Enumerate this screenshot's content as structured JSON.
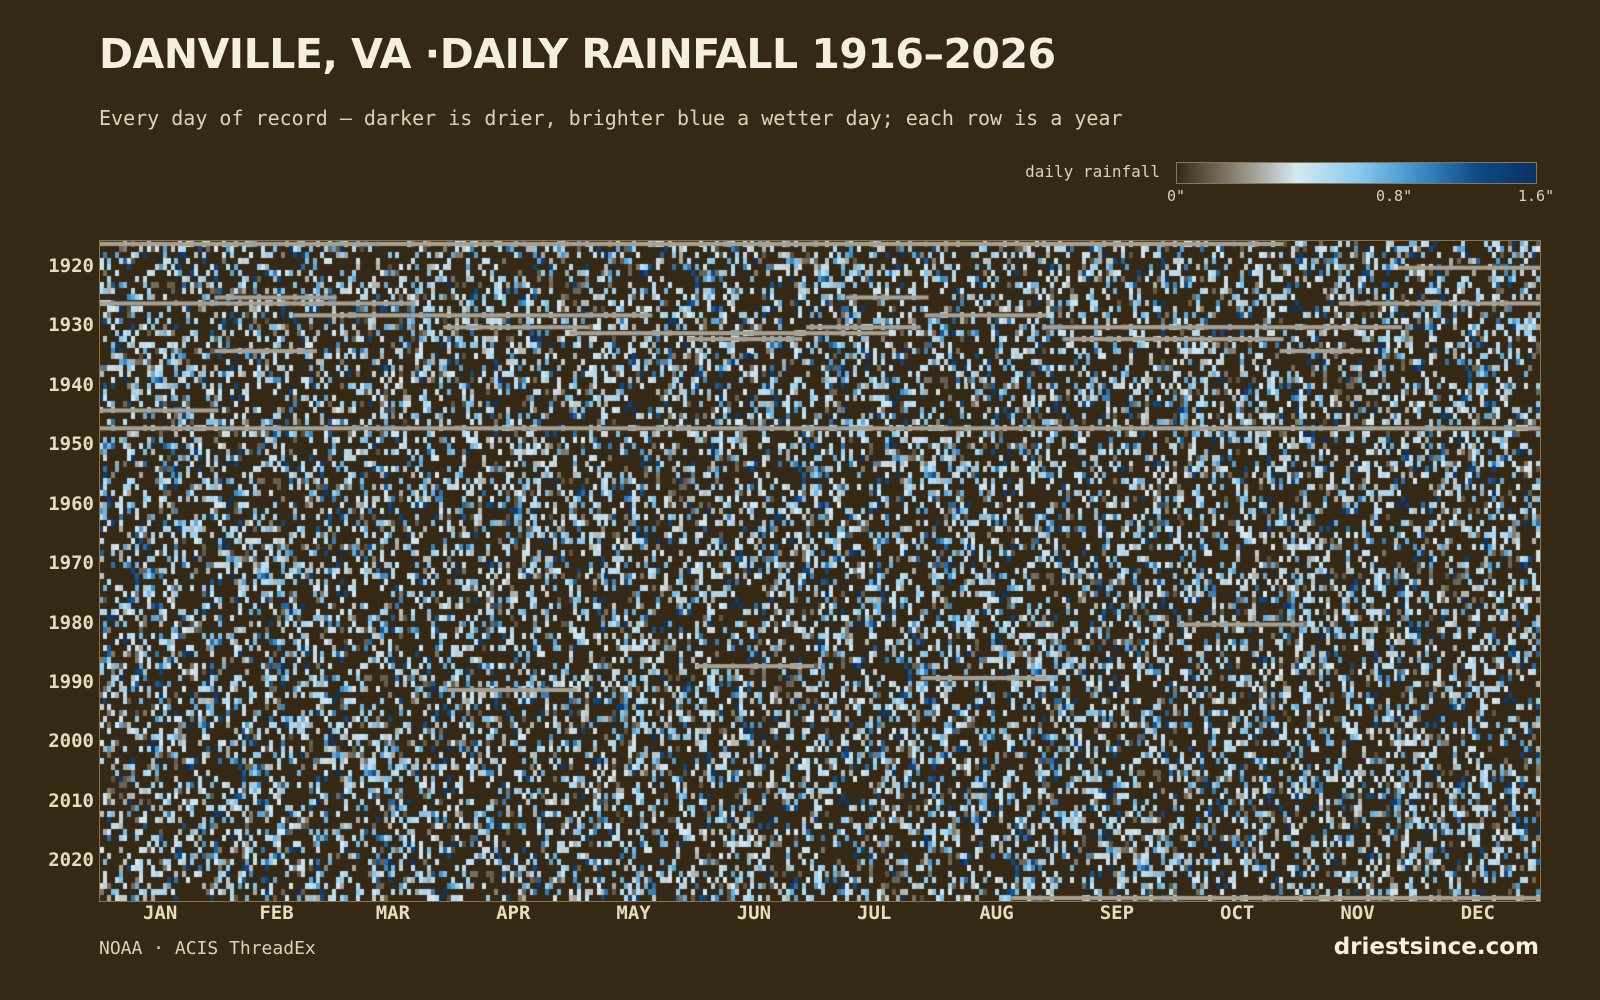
{
  "header": {
    "title": "DANVILLE, VA ·DAILY RAINFALL 1916–2026",
    "subtitle": "Every day of record — darker is drier, brighter blue a wetter day; each row is a year"
  },
  "legend": {
    "label": "daily rainfall",
    "ticks": [
      "0\"",
      "0.8\"",
      "1.6\""
    ],
    "scale_min_in": 0,
    "scale_max_in": 1.6
  },
  "colors": {
    "background": "#352915",
    "missing": "#a79f90",
    "scale": [
      "#352915",
      "#8c8576",
      "#d6e8f2",
      "#8ccbee",
      "#3f8fcb",
      "#0f4a86",
      "#0b3165"
    ]
  },
  "chart_data": {
    "type": "heatmap",
    "title": "DANVILLE, VA ·DAILY RAINFALL 1916–2026",
    "x_axis": "day of year",
    "y_axis": "year",
    "year_range": [
      1916,
      2026
    ],
    "year_tick_labels": [
      "1920",
      "1930",
      "1940",
      "1950",
      "1960",
      "1970",
      "1980",
      "1990",
      "2000",
      "2010",
      "2020"
    ],
    "month_labels": [
      "JAN",
      "FEB",
      "MAR",
      "APR",
      "MAY",
      "JUN",
      "JUL",
      "AUG",
      "SEP",
      "OCT",
      "NOV",
      "DEC"
    ],
    "value_unit": "inches",
    "value_range": [
      0,
      1.6
    ],
    "missing_periods": [
      {
        "year": 1916,
        "from_day": 1,
        "to_day": 90
      },
      {
        "year": 1916,
        "from_day": 90,
        "to_day": 300
      },
      {
        "year": 1920,
        "from_day": 330,
        "to_day": 365
      },
      {
        "year": 1925,
        "from_day": 30,
        "to_day": 60
      },
      {
        "year": 1925,
        "from_day": 190,
        "to_day": 210
      },
      {
        "year": 1926,
        "from_day": 1,
        "to_day": 80
      },
      {
        "year": 1926,
        "from_day": 315,
        "to_day": 365
      },
      {
        "year": 1928,
        "from_day": 50,
        "to_day": 140
      },
      {
        "year": 1928,
        "from_day": 210,
        "to_day": 240
      },
      {
        "year": 1930,
        "from_day": 88,
        "to_day": 124
      },
      {
        "year": 1930,
        "from_day": 180,
        "to_day": 208
      },
      {
        "year": 1930,
        "from_day": 240,
        "to_day": 330
      },
      {
        "year": 1931,
        "from_day": 120,
        "to_day": 200
      },
      {
        "year": 1932,
        "from_day": 150,
        "to_day": 178
      },
      {
        "year": 1932,
        "from_day": 245,
        "to_day": 300
      },
      {
        "year": 1934,
        "from_day": 30,
        "to_day": 55
      },
      {
        "year": 1934,
        "from_day": 300,
        "to_day": 320
      },
      {
        "year": 1944,
        "from_day": 1,
        "to_day": 30
      },
      {
        "year": 1947,
        "from_day": 1,
        "to_day": 365
      },
      {
        "year": 1980,
        "from_day": 274,
        "to_day": 305
      },
      {
        "year": 1987,
        "from_day": 152,
        "to_day": 181
      },
      {
        "year": 1989,
        "from_day": 209,
        "to_day": 240
      },
      {
        "year": 1991,
        "from_day": 89,
        "to_day": 121
      },
      {
        "year": 2026,
        "from_day": 232,
        "to_day": 365
      }
    ]
  },
  "footer": {
    "source": "NOAA · ACIS ThreadEx",
    "brand": "driestsince.com"
  }
}
